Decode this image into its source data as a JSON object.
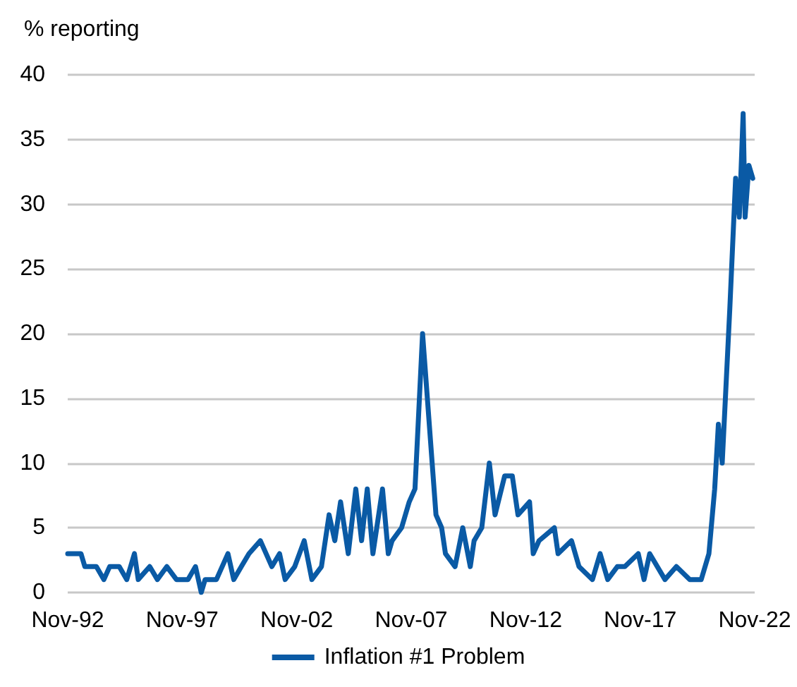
{
  "chart_data": {
    "type": "line",
    "ylabel": "% reporting",
    "legend": "bottom",
    "grid": "y",
    "marker": "none",
    "line_style": "solid",
    "x": [
      "1992-11",
      "1993-06",
      "1993-08",
      "1994-02",
      "1994-06",
      "1994-09",
      "1995-02",
      "1995-06",
      "1995-10",
      "1995-12",
      "1996-06",
      "1996-10",
      "1997-03",
      "1997-08",
      "1998-02",
      "1998-06",
      "1998-09",
      "1998-11",
      "1999-05",
      "1999-11",
      "2000-02",
      "2000-06",
      "2000-10",
      "2001-04",
      "2001-07",
      "2001-10",
      "2002-02",
      "2002-05",
      "2002-10",
      "2003-03",
      "2003-07",
      "2003-12",
      "2004-04",
      "2004-07",
      "2004-10",
      "2005-02",
      "2005-06",
      "2005-09",
      "2005-12",
      "2006-03",
      "2006-08",
      "2006-11",
      "2007-01",
      "2007-06",
      "2007-10",
      "2008-01",
      "2008-05",
      "2008-12",
      "2009-03",
      "2009-05",
      "2009-10",
      "2010-02",
      "2010-06",
      "2010-08",
      "2010-12",
      "2011-04",
      "2011-07",
      "2011-12",
      "2012-04",
      "2012-07",
      "2013-01",
      "2013-03",
      "2013-06",
      "2014-02",
      "2014-04",
      "2014-11",
      "2015-03",
      "2015-10",
      "2016-02",
      "2016-06",
      "2016-11",
      "2017-03",
      "2017-10",
      "2018-01",
      "2018-04",
      "2018-12",
      "2019-06",
      "2020-01",
      "2020-07",
      "2020-11",
      "2021-02",
      "2021-04",
      "2021-06",
      "2021-10",
      "2022-01",
      "2022-03",
      "2022-05",
      "2022-06",
      "2022-08",
      "2022-10"
    ],
    "series": [
      {
        "name": "Inflation #1 Problem",
        "color": "#0a5aa5",
        "values": [
          3,
          3,
          2,
          2,
          1,
          2,
          2,
          1,
          3,
          1,
          2,
          1,
          2,
          1,
          1,
          2,
          0,
          1,
          1,
          3,
          1,
          2,
          3,
          4,
          3,
          2,
          3,
          1,
          2,
          4,
          1,
          2,
          6,
          4,
          7,
          3,
          8,
          4,
          8,
          3,
          8,
          3,
          4,
          5,
          7,
          8,
          20,
          6,
          5,
          3,
          2,
          5,
          2,
          4,
          5,
          10,
          6,
          9,
          9,
          6,
          7,
          3,
          4,
          5,
          3,
          4,
          2,
          1,
          3,
          1,
          2,
          2,
          3,
          1,
          3,
          1,
          2,
          1,
          1,
          3,
          8,
          13,
          10,
          22,
          32,
          29,
          37,
          29,
          33,
          32
        ]
      }
    ],
    "ylim": [
      0,
      40
    ],
    "yticks": [
      0,
      5,
      10,
      15,
      20,
      25,
      30,
      35,
      40
    ],
    "xlim": [
      "1992-11",
      "2022-11"
    ],
    "xticks": [
      {
        "value": "1992-11",
        "label": "Nov-92"
      },
      {
        "value": "1997-11",
        "label": "Nov-97"
      },
      {
        "value": "2002-11",
        "label": "Nov-02"
      },
      {
        "value": "2007-11",
        "label": "Nov-07"
      },
      {
        "value": "2012-11",
        "label": "Nov-12"
      },
      {
        "value": "2017-11",
        "label": "Nov-17"
      },
      {
        "value": "2022-11",
        "label": "Nov-22"
      }
    ]
  }
}
